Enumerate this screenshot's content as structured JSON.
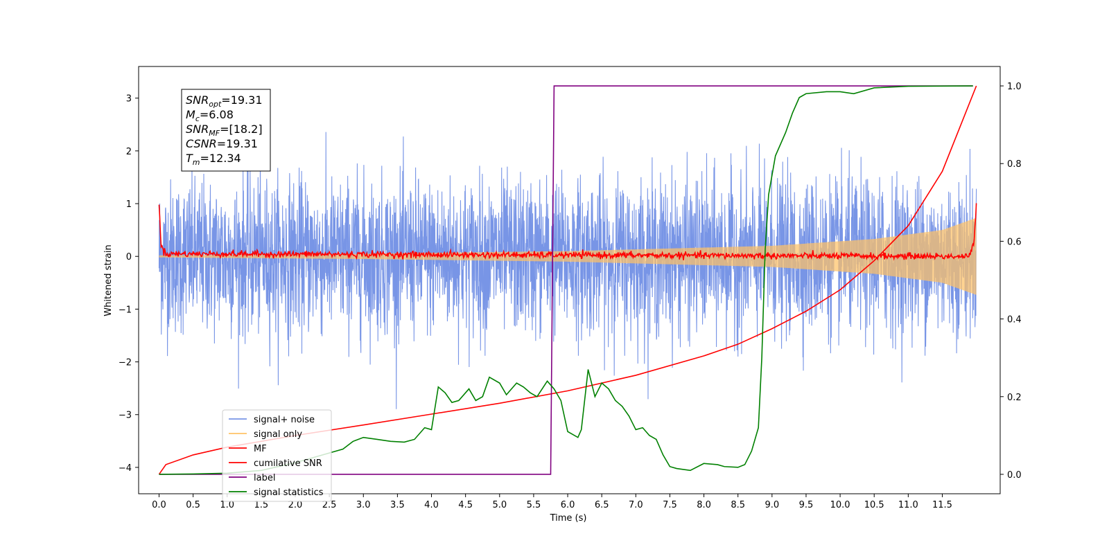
{
  "chart_data": {
    "type": "line",
    "xlabel": "Time (s)",
    "ylabel": "Whitened strain",
    "xlim": [
      -0.3,
      12.35
    ],
    "ylim_left": [
      -4.5,
      3.6
    ],
    "ylim_right": [
      -0.05,
      1.05
    ],
    "x_ticks": [
      0.0,
      0.5,
      1.0,
      1.5,
      2.0,
      2.5,
      3.0,
      3.5,
      4.0,
      4.5,
      5.0,
      5.5,
      6.0,
      6.5,
      7.0,
      7.5,
      8.0,
      8.5,
      9.0,
      9.5,
      10.0,
      10.5,
      11.0,
      11.5
    ],
    "x_tick_labels": [
      "0.0",
      "0.5",
      "1.0",
      "1.5",
      "2.0",
      "2.5",
      "3.0",
      "3.5",
      "4.0",
      "4.5",
      "5.0",
      "5.5",
      "6.0",
      "6.5",
      "7.0",
      "7.5",
      "8.0",
      "8.5",
      "9.0",
      "9.5",
      "10.0",
      "10.5",
      "11.0",
      "11.5"
    ],
    "y_left_ticks": [
      3,
      2,
      1,
      0,
      -1,
      -2,
      -3,
      -4
    ],
    "y_left_tick_labels": [
      "3",
      "2",
      "1",
      "0",
      "−1",
      "−2",
      "−3",
      "−4"
    ],
    "y_right_ticks": [
      1.0,
      0.8,
      0.6,
      0.4,
      0.2,
      0.0
    ],
    "y_right_tick_labels": [
      "1.0",
      "0.8",
      "0.6",
      "0.4",
      "0.2",
      "0.0"
    ],
    "info_box": [
      {
        "sym": "SNR",
        "sub": "opt",
        "val": "=19.31"
      },
      {
        "sym": "M",
        "sub": "c",
        "val": "=6.08"
      },
      {
        "sym": "SNR",
        "sub": "MF",
        "val": "=[18.2]"
      },
      {
        "sym": "CSNR",
        "sub": "",
        "val": "=19.31"
      },
      {
        "sym": "T",
        "sub": "m",
        "val": "=12.34"
      }
    ],
    "series": [
      {
        "name": "signal+ noise",
        "color": "#7895e6",
        "axis": "left",
        "noise_sigma": 0.72,
        "x_range": [
          0.0,
          12.0
        ]
      },
      {
        "name": "signal only",
        "color": "#ffc266",
        "axis": "left",
        "envelope": [
          [
            0.0,
            0.02
          ],
          [
            3.0,
            0.05
          ],
          [
            6.0,
            0.1
          ],
          [
            9.0,
            0.2
          ],
          [
            10.5,
            0.33
          ],
          [
            11.5,
            0.5
          ],
          [
            12.0,
            0.73
          ]
        ]
      },
      {
        "name": "MF",
        "color": "#ff0000",
        "axis": "left",
        "points": [
          [
            0.0,
            1.0
          ],
          [
            0.03,
            0.2
          ],
          [
            0.1,
            0.05
          ],
          [
            11.9,
            0.0
          ],
          [
            11.97,
            0.3
          ],
          [
            12.0,
            1.0
          ]
        ]
      },
      {
        "name": "cumilative SNR",
        "color": "#ff0000",
        "axis": "right",
        "points": [
          [
            0.0,
            0.0
          ],
          [
            0.1,
            0.025
          ],
          [
            0.5,
            0.05
          ],
          [
            1.0,
            0.07
          ],
          [
            2.0,
            0.1
          ],
          [
            3.0,
            0.127
          ],
          [
            4.0,
            0.155
          ],
          [
            5.0,
            0.183
          ],
          [
            6.0,
            0.215
          ],
          [
            7.0,
            0.255
          ],
          [
            8.0,
            0.305
          ],
          [
            8.5,
            0.335
          ],
          [
            9.0,
            0.375
          ],
          [
            9.5,
            0.42
          ],
          [
            10.0,
            0.475
          ],
          [
            10.5,
            0.55
          ],
          [
            11.0,
            0.64
          ],
          [
            11.5,
            0.78
          ],
          [
            12.0,
            1.0
          ]
        ]
      },
      {
        "name": "label",
        "color": "#800080",
        "axis": "right",
        "points": [
          [
            0.0,
            0.0
          ],
          [
            5.75,
            0.0
          ],
          [
            5.8,
            1.0
          ],
          [
            11.95,
            1.0
          ]
        ]
      },
      {
        "name": "signal statistics",
        "color": "#008000",
        "axis": "right",
        "points": [
          [
            0.0,
            0.0
          ],
          [
            0.5,
            0.001
          ],
          [
            1.0,
            0.003
          ],
          [
            1.5,
            0.01
          ],
          [
            2.0,
            0.03
          ],
          [
            2.5,
            0.055
          ],
          [
            2.7,
            0.065
          ],
          [
            2.85,
            0.085
          ],
          [
            3.0,
            0.095
          ],
          [
            3.2,
            0.09
          ],
          [
            3.4,
            0.085
          ],
          [
            3.6,
            0.083
          ],
          [
            3.75,
            0.09
          ],
          [
            3.85,
            0.11
          ],
          [
            3.9,
            0.12
          ],
          [
            4.0,
            0.115
          ],
          [
            4.1,
            0.225
          ],
          [
            4.2,
            0.21
          ],
          [
            4.3,
            0.185
          ],
          [
            4.4,
            0.19
          ],
          [
            4.55,
            0.22
          ],
          [
            4.65,
            0.19
          ],
          [
            4.75,
            0.2
          ],
          [
            4.85,
            0.25
          ],
          [
            5.0,
            0.235
          ],
          [
            5.1,
            0.205
          ],
          [
            5.25,
            0.235
          ],
          [
            5.35,
            0.225
          ],
          [
            5.45,
            0.21
          ],
          [
            5.55,
            0.2
          ],
          [
            5.7,
            0.24
          ],
          [
            5.8,
            0.22
          ],
          [
            5.9,
            0.19
          ],
          [
            6.0,
            0.11
          ],
          [
            6.15,
            0.095
          ],
          [
            6.2,
            0.115
          ],
          [
            6.3,
            0.27
          ],
          [
            6.4,
            0.2
          ],
          [
            6.5,
            0.235
          ],
          [
            6.6,
            0.22
          ],
          [
            6.7,
            0.19
          ],
          [
            6.8,
            0.175
          ],
          [
            6.9,
            0.15
          ],
          [
            7.0,
            0.115
          ],
          [
            7.1,
            0.12
          ],
          [
            7.2,
            0.1
          ],
          [
            7.3,
            0.09
          ],
          [
            7.4,
            0.05
          ],
          [
            7.5,
            0.02
          ],
          [
            7.6,
            0.015
          ],
          [
            7.8,
            0.01
          ],
          [
            8.0,
            0.028
          ],
          [
            8.2,
            0.025
          ],
          [
            8.3,
            0.02
          ],
          [
            8.5,
            0.018
          ],
          [
            8.6,
            0.025
          ],
          [
            8.7,
            0.06
          ],
          [
            8.8,
            0.12
          ],
          [
            8.85,
            0.3
          ],
          [
            8.9,
            0.58
          ],
          [
            8.95,
            0.72
          ],
          [
            9.05,
            0.82
          ],
          [
            9.2,
            0.88
          ],
          [
            9.3,
            0.93
          ],
          [
            9.4,
            0.97
          ],
          [
            9.5,
            0.98
          ],
          [
            9.8,
            0.985
          ],
          [
            10.0,
            0.985
          ],
          [
            10.2,
            0.98
          ],
          [
            10.5,
            0.995
          ],
          [
            11.0,
            0.999
          ],
          [
            11.95,
            1.0
          ]
        ]
      }
    ],
    "legend_position": "lower-left"
  }
}
